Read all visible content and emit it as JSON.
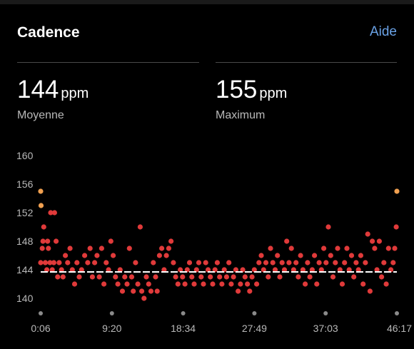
{
  "header": {
    "title": "Cadence",
    "help_label": "Aide"
  },
  "stats": {
    "average": {
      "value": "144",
      "unit": "ppm",
      "label": "Moyenne"
    },
    "maximum": {
      "value": "155",
      "unit": "ppm",
      "label": "Maximum"
    }
  },
  "chart_data": {
    "type": "scatter",
    "title": "",
    "xlabel": "",
    "ylabel": "",
    "y_ticks": [
      160,
      156,
      152,
      148,
      144,
      140
    ],
    "x_ticks": [
      "0:06",
      "9:20",
      "18:34",
      "27:49",
      "37:03",
      "46:17"
    ],
    "ylim": [
      140,
      160
    ],
    "x_range_minutes": [
      0.1,
      46.28
    ],
    "average_line": 143.7,
    "grid": false,
    "colors": {
      "points": "#e03a3a",
      "max_points": "#f0a050",
      "average_line": "#ffffff",
      "tick_dot": "#8a8a8a"
    },
    "series": [
      {
        "name": "",
        "points": [
          [
            0.1,
            145
          ],
          [
            0.3,
            147
          ],
          [
            0.4,
            148
          ],
          [
            0.5,
            150
          ],
          [
            0.7,
            145
          ],
          [
            0.9,
            144
          ],
          [
            1.0,
            148
          ],
          [
            1.1,
            147
          ],
          [
            1.3,
            145
          ],
          [
            1.4,
            152
          ],
          [
            1.6,
            144
          ],
          [
            1.8,
            145
          ],
          [
            1.9,
            152
          ],
          [
            2.1,
            148
          ],
          [
            2.3,
            143
          ],
          [
            2.5,
            145
          ],
          [
            2.8,
            144
          ],
          [
            3.0,
            143
          ],
          [
            3.3,
            146
          ],
          [
            3.6,
            145
          ],
          [
            3.9,
            147
          ],
          [
            4.2,
            144
          ],
          [
            4.5,
            142
          ],
          [
            4.8,
            145
          ],
          [
            5.1,
            143
          ],
          [
            5.4,
            144
          ],
          [
            5.8,
            146
          ],
          [
            6.2,
            145
          ],
          [
            6.5,
            147
          ],
          [
            6.8,
            143
          ],
          [
            7.1,
            145
          ],
          [
            7.4,
            146
          ],
          [
            7.7,
            143
          ],
          [
            8.0,
            147
          ],
          [
            8.3,
            142
          ],
          [
            8.6,
            145
          ],
          [
            8.9,
            144
          ],
          [
            9.2,
            148
          ],
          [
            9.5,
            146
          ],
          [
            9.8,
            143
          ],
          [
            10.1,
            142
          ],
          [
            10.4,
            144
          ],
          [
            10.7,
            141
          ],
          [
            11.0,
            143
          ],
          [
            11.3,
            142
          ],
          [
            11.6,
            147
          ],
          [
            11.9,
            143
          ],
          [
            12.1,
            141
          ],
          [
            12.4,
            145
          ],
          [
            12.7,
            142
          ],
          [
            13.0,
            150
          ],
          [
            13.2,
            141
          ],
          [
            13.5,
            140
          ],
          [
            13.8,
            143
          ],
          [
            14.1,
            142
          ],
          [
            14.4,
            141
          ],
          [
            14.7,
            145
          ],
          [
            15.0,
            143
          ],
          [
            15.2,
            141
          ],
          [
            15.5,
            146
          ],
          [
            15.8,
            147
          ],
          [
            16.1,
            144
          ],
          [
            16.4,
            146
          ],
          [
            16.7,
            147
          ],
          [
            17.0,
            148
          ],
          [
            17.3,
            145
          ],
          [
            17.6,
            143
          ],
          [
            17.9,
            142
          ],
          [
            18.2,
            144
          ],
          [
            18.5,
            143
          ],
          [
            18.8,
            142
          ],
          [
            19.1,
            144
          ],
          [
            19.4,
            145
          ],
          [
            19.7,
            143
          ],
          [
            20.0,
            142
          ],
          [
            20.3,
            144
          ],
          [
            20.6,
            145
          ],
          [
            20.9,
            143
          ],
          [
            21.2,
            142
          ],
          [
            21.5,
            145
          ],
          [
            21.8,
            144
          ],
          [
            22.1,
            143
          ],
          [
            22.4,
            142
          ],
          [
            22.7,
            144
          ],
          [
            23.0,
            145
          ],
          [
            23.3,
            143
          ],
          [
            23.6,
            142
          ],
          [
            23.9,
            144
          ],
          [
            24.2,
            143
          ],
          [
            24.5,
            145
          ],
          [
            24.8,
            142
          ],
          [
            25.1,
            143
          ],
          [
            25.4,
            144
          ],
          [
            25.7,
            141
          ],
          [
            26.0,
            142
          ],
          [
            26.3,
            144
          ],
          [
            26.6,
            143
          ],
          [
            26.9,
            142
          ],
          [
            27.2,
            141
          ],
          [
            27.5,
            143
          ],
          [
            27.8,
            144
          ],
          [
            28.1,
            142
          ],
          [
            28.4,
            145
          ],
          [
            28.7,
            146
          ],
          [
            29.0,
            144
          ],
          [
            29.3,
            145
          ],
          [
            29.6,
            143
          ],
          [
            29.9,
            147
          ],
          [
            30.2,
            145
          ],
          [
            30.5,
            144
          ],
          [
            30.8,
            146
          ],
          [
            31.1,
            143
          ],
          [
            31.4,
            145
          ],
          [
            31.7,
            144
          ],
          [
            32.0,
            148
          ],
          [
            32.3,
            145
          ],
          [
            32.6,
            147
          ],
          [
            32.9,
            144
          ],
          [
            33.2,
            145
          ],
          [
            33.5,
            143
          ],
          [
            33.8,
            146
          ],
          [
            34.1,
            144
          ],
          [
            34.4,
            142
          ],
          [
            34.7,
            145
          ],
          [
            35.0,
            143
          ],
          [
            35.3,
            144
          ],
          [
            35.6,
            146
          ],
          [
            35.9,
            142
          ],
          [
            36.2,
            145
          ],
          [
            36.5,
            144
          ],
          [
            36.8,
            147
          ],
          [
            37.1,
            145
          ],
          [
            37.4,
            150
          ],
          [
            37.7,
            146
          ],
          [
            38.0,
            143
          ],
          [
            38.3,
            145
          ],
          [
            38.6,
            147
          ],
          [
            38.9,
            144
          ],
          [
            39.2,
            142
          ],
          [
            39.5,
            145
          ],
          [
            39.8,
            147
          ],
          [
            40.1,
            144
          ],
          [
            40.4,
            146
          ],
          [
            40.7,
            143
          ],
          [
            41.0,
            145
          ],
          [
            41.3,
            144
          ],
          [
            41.6,
            146
          ],
          [
            41.9,
            142
          ],
          [
            42.2,
            145
          ],
          [
            42.5,
            149
          ],
          [
            42.8,
            141
          ],
          [
            43.1,
            148
          ],
          [
            43.4,
            147
          ],
          [
            43.7,
            144
          ],
          [
            44.0,
            148
          ],
          [
            44.3,
            143
          ],
          [
            44.6,
            145
          ],
          [
            44.9,
            142
          ],
          [
            45.2,
            147
          ],
          [
            45.5,
            144
          ],
          [
            45.8,
            145
          ],
          [
            46.0,
            147
          ],
          [
            46.2,
            150
          ]
        ]
      },
      {
        "name": "",
        "points": [
          [
            0.1,
            155
          ],
          [
            0.15,
            153
          ],
          [
            46.28,
            155
          ]
        ]
      }
    ]
  }
}
